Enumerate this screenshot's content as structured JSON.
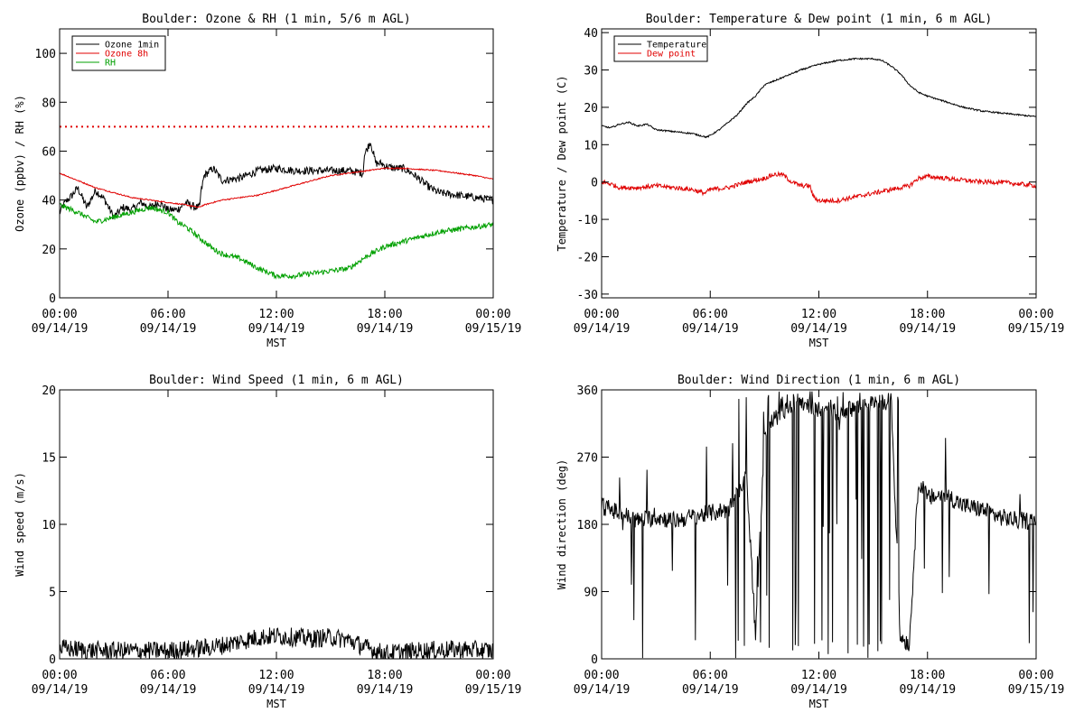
{
  "chart_data": [
    {
      "id": "ozone-rh",
      "type": "line",
      "title": "Boulder: Ozone & RH (1 min, 5/6 m AGL)",
      "xlabel": "MST",
      "ylabel": "Ozone (ppbv) / RH (%)",
      "xlim": [
        0,
        24
      ],
      "ylim": [
        0,
        110
      ],
      "x_ticks": [
        {
          "t": 0,
          "time": "00:00",
          "date": "09/14/19"
        },
        {
          "t": 6,
          "time": "06:00",
          "date": "09/14/19"
        },
        {
          "t": 12,
          "time": "12:00",
          "date": "09/14/19"
        },
        {
          "t": 18,
          "time": "18:00",
          "date": "09/14/19"
        },
        {
          "t": 24,
          "time": "00:00",
          "date": "09/15/19"
        }
      ],
      "y_ticks": [
        0,
        20,
        40,
        60,
        80,
        100
      ],
      "reference_line": {
        "y": 70,
        "color": "#e00000",
        "style": "dotted"
      },
      "legend_position": "top-left",
      "series": [
        {
          "name": "Ozone 1min",
          "color": "#000000",
          "noise": 1.6,
          "x": [
            0,
            0.3,
            0.7,
            1,
            1.5,
            2,
            2.5,
            3,
            3.5,
            4,
            4.5,
            5,
            5.5,
            6,
            6.5,
            7,
            7.5,
            7.75,
            7.8,
            8,
            8.5,
            9,
            10,
            11,
            12,
            13,
            14,
            15,
            16,
            16.8,
            16.85,
            17.2,
            17.5,
            17.8,
            18,
            18.5,
            19,
            19.5,
            20,
            20.5,
            21,
            22,
            23,
            24
          ],
          "values": [
            35,
            39,
            42,
            45,
            37,
            44,
            40,
            33,
            37,
            36,
            39,
            37,
            39,
            36,
            36,
            39,
            37,
            37,
            42,
            50,
            53,
            48,
            49,
            52,
            53,
            52,
            52,
            52,
            52,
            51,
            58,
            64,
            55,
            55,
            54,
            53,
            53,
            51,
            48,
            45,
            43,
            42,
            41,
            40
          ]
        },
        {
          "name": "Ozone 8h",
          "color": "#e00000",
          "noise": 0.25,
          "x": [
            0,
            1,
            2,
            3,
            4,
            5,
            6,
            7,
            7.7,
            8,
            9,
            10,
            11,
            12,
            13,
            14,
            15,
            16,
            17,
            18,
            19,
            20,
            21,
            22,
            23,
            24
          ],
          "values": [
            51,
            48,
            45,
            43,
            41,
            40,
            39,
            38,
            37,
            38,
            40,
            41,
            42,
            44,
            46,
            48,
            50,
            51,
            52,
            53,
            53,
            52.5,
            52,
            51,
            50,
            48.5
          ]
        },
        {
          "name": "RH",
          "color": "#00a000",
          "noise": 1.1,
          "x": [
            0,
            1,
            2,
            3,
            4,
            5,
            6,
            6.5,
            7,
            7.5,
            8,
            8.5,
            9,
            10,
            11,
            12,
            13,
            14,
            15,
            16,
            17,
            18,
            19,
            20,
            21,
            22,
            23,
            24
          ],
          "values": [
            38,
            35,
            31,
            33,
            35,
            37,
            35,
            31,
            29,
            26,
            23,
            20,
            18,
            16,
            12,
            9,
            9,
            10,
            11,
            12,
            17,
            21,
            23,
            25,
            27,
            28,
            29,
            30
          ]
        }
      ]
    },
    {
      "id": "temp-dew",
      "type": "line",
      "title": "Boulder: Temperature & Dew point (1 min, 6 m AGL)",
      "xlabel": "MST",
      "ylabel": "Temperature / Dew point (C)",
      "xlim": [
        0,
        24
      ],
      "ylim": [
        -31,
        41
      ],
      "x_ticks": [
        {
          "t": 0,
          "time": "00:00",
          "date": "09/14/19"
        },
        {
          "t": 6,
          "time": "06:00",
          "date": "09/14/19"
        },
        {
          "t": 12,
          "time": "12:00",
          "date": "09/14/19"
        },
        {
          "t": 18,
          "time": "18:00",
          "date": "09/14/19"
        },
        {
          "t": 24,
          "time": "00:00",
          "date": "09/15/19"
        }
      ],
      "y_ticks": [
        -30,
        -20,
        -10,
        0,
        10,
        20,
        30,
        40
      ],
      "legend_position": "top-left",
      "series": [
        {
          "name": "Temperature",
          "color": "#000000",
          "noise": 0.2,
          "x": [
            0,
            0.5,
            1,
            1.5,
            2,
            2.5,
            3,
            4,
            5,
            5.8,
            6,
            6.5,
            7,
            7.5,
            8,
            8.5,
            9,
            10,
            11,
            12,
            13,
            14,
            15,
            15.5,
            16,
            16.5,
            17,
            17.5,
            18,
            19,
            20,
            21,
            22,
            23,
            24
          ],
          "values": [
            15,
            14.5,
            15.5,
            16,
            15,
            15.5,
            14,
            13.5,
            13,
            12,
            12.5,
            14,
            16,
            18,
            21,
            23,
            26,
            28,
            30,
            31.5,
            32.5,
            33,
            33,
            32.5,
            31,
            29,
            26,
            24,
            23,
            21.5,
            20,
            19,
            18.5,
            18,
            17.5
          ]
        },
        {
          "name": "Dew point",
          "color": "#e00000",
          "noise": 0.6,
          "x": [
            0,
            0.5,
            1,
            2,
            3,
            4,
            5,
            5.7,
            6,
            7,
            8,
            9,
            9.5,
            10,
            10.5,
            11,
            11.5,
            11.7,
            12,
            13,
            14,
            15,
            16,
            17,
            17.5,
            18,
            19,
            20,
            21,
            22,
            23,
            24
          ],
          "values": [
            0,
            -0.5,
            -1.5,
            -1.5,
            -1,
            -1.5,
            -2,
            -3,
            -2,
            -1.5,
            0,
            1,
            2,
            2,
            0,
            -1,
            -1,
            -4,
            -5,
            -5,
            -4,
            -3,
            -2,
            -1,
            1,
            1.5,
            1,
            0.5,
            0,
            0,
            -0.5,
            -1
          ]
        }
      ]
    },
    {
      "id": "wind-speed",
      "type": "line",
      "title": "Boulder: Wind Speed (1 min, 6 m AGL)",
      "xlabel": "MST",
      "ylabel": "Wind speed (m/s)",
      "xlim": [
        0,
        24
      ],
      "ylim": [
        0,
        20
      ],
      "x_ticks": [
        {
          "t": 0,
          "time": "00:00",
          "date": "09/14/19"
        },
        {
          "t": 6,
          "time": "06:00",
          "date": "09/14/19"
        },
        {
          "t": 12,
          "time": "12:00",
          "date": "09/14/19"
        },
        {
          "t": 18,
          "time": "18:00",
          "date": "09/14/19"
        },
        {
          "t": 24,
          "time": "00:00",
          "date": "09/15/19"
        }
      ],
      "y_ticks": [
        0,
        5,
        10,
        15,
        20
      ],
      "series": [
        {
          "color": "#000000",
          "noise": 0.7,
          "x": [
            0,
            2,
            4,
            6,
            8,
            9,
            10,
            11,
            12,
            13,
            14,
            15,
            16,
            17,
            18,
            20,
            22,
            24
          ],
          "values": [
            0.8,
            0.6,
            0.6,
            0.6,
            0.8,
            1.0,
            1.3,
            1.6,
            1.7,
            1.6,
            1.5,
            1.6,
            1.4,
            0.8,
            0.4,
            0.6,
            0.7,
            0.6
          ]
        }
      ]
    },
    {
      "id": "wind-direction",
      "type": "line",
      "title": "Boulder: Wind Direction (1 min, 6 m AGL)",
      "xlabel": "MST",
      "ylabel": "Wind direction (deg)",
      "xlim": [
        0,
        24
      ],
      "ylim": [
        0,
        360
      ],
      "x_ticks": [
        {
          "t": 0,
          "time": "00:00",
          "date": "09/14/19"
        },
        {
          "t": 6,
          "time": "06:00",
          "date": "09/14/19"
        },
        {
          "t": 12,
          "time": "12:00",
          "date": "09/14/19"
        },
        {
          "t": 18,
          "time": "18:00",
          "date": "09/14/19"
        },
        {
          "t": 24,
          "time": "00:00",
          "date": "09/15/19"
        }
      ],
      "y_ticks": [
        0,
        90,
        180,
        270,
        360
      ],
      "series": [
        {
          "color": "#000000",
          "noise": 12,
          "x": [
            0,
            1,
            2,
            3,
            4,
            5,
            6,
            7,
            7.5,
            8,
            8.5,
            9,
            9.5,
            10,
            10.5,
            11,
            11.5,
            12,
            13,
            14,
            15,
            16,
            16.5,
            17,
            17.5,
            18,
            19,
            20,
            21,
            22,
            23,
            24
          ],
          "values": [
            205,
            195,
            185,
            190,
            185,
            190,
            195,
            200,
            220,
            250,
            30,
            300,
            320,
            330,
            340,
            345,
            340,
            335,
            330,
            335,
            340,
            345,
            30,
            20,
            240,
            215,
            220,
            205,
            200,
            190,
            185,
            185
          ]
        }
      ]
    }
  ]
}
